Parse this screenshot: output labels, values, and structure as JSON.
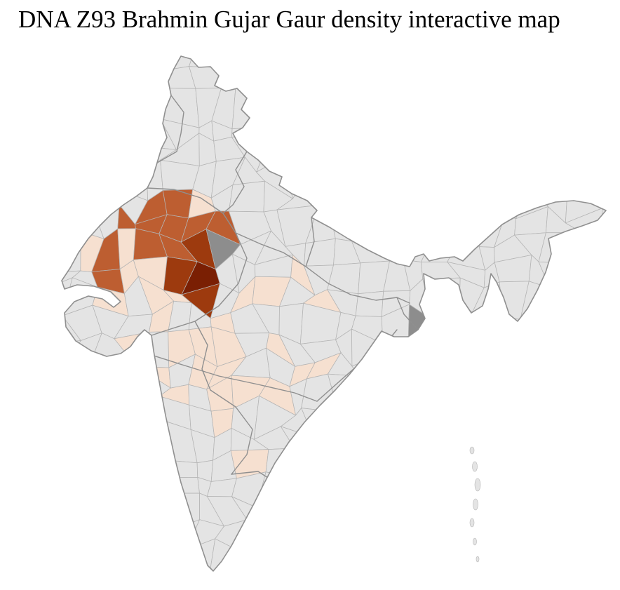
{
  "title": "DNA Z93 Brahmin Gujar Gaur density interactive map",
  "map": {
    "type": "choropleth",
    "region_label": "India (district level)",
    "colors": {
      "base": "#e4e4e4",
      "district_border": "#b4b4b4",
      "state_border": "#8f8f8f",
      "outline": "#909090",
      "density_low": "#f6e0d0",
      "density_medium": "#bd5e31",
      "density_high": "#9d3a0e",
      "density_highest": "#7a1f03",
      "highlight_gray": "#8d8d8d"
    },
    "map_data": {
      "density_peak_area": "northwest districts (dark cluster)",
      "levels": [
        "none",
        "low",
        "medium",
        "high",
        "highest"
      ]
    }
  }
}
